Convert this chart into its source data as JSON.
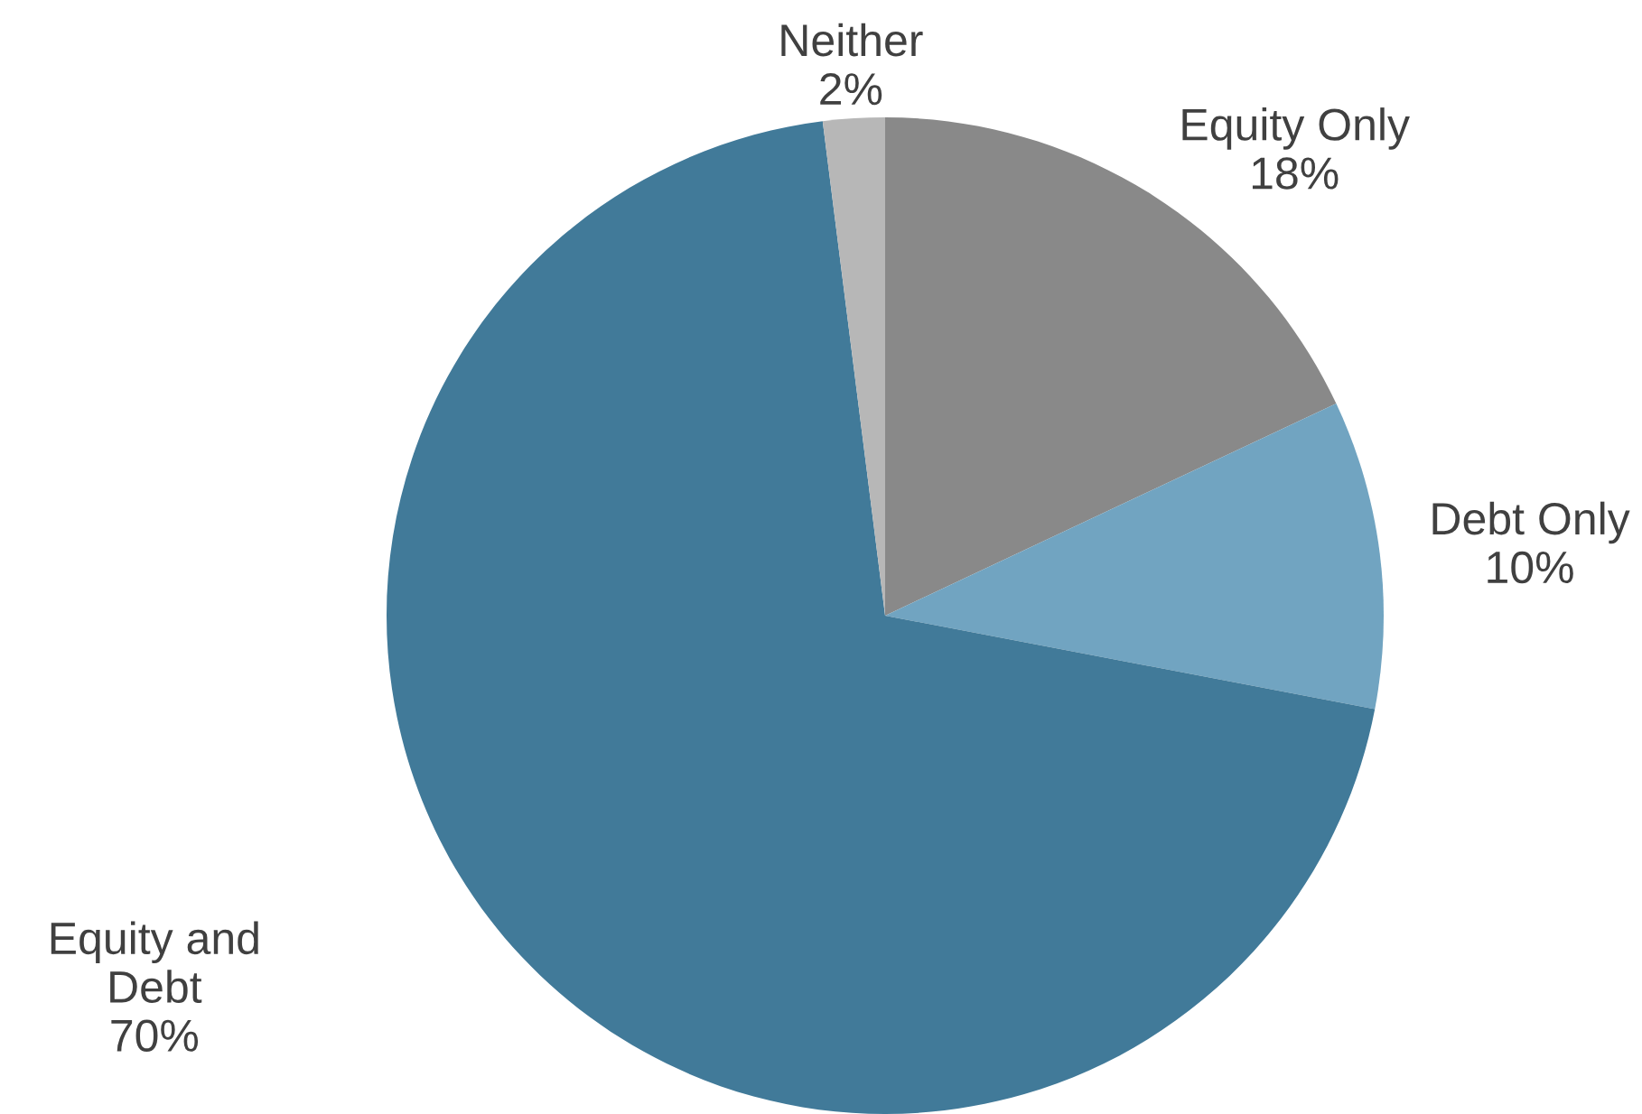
{
  "chart_data": {
    "type": "pie",
    "categories": [
      "Equity Only",
      "Debt Only",
      "Equity and\nDebt",
      "Neither"
    ],
    "values": [
      18,
      10,
      70,
      2
    ],
    "colors": [
      "#898989",
      "#71a4c1",
      "#417a99",
      "#b7b7b7"
    ],
    "value_labels": [
      "18%",
      "10%",
      "70%",
      "2%"
    ]
  }
}
